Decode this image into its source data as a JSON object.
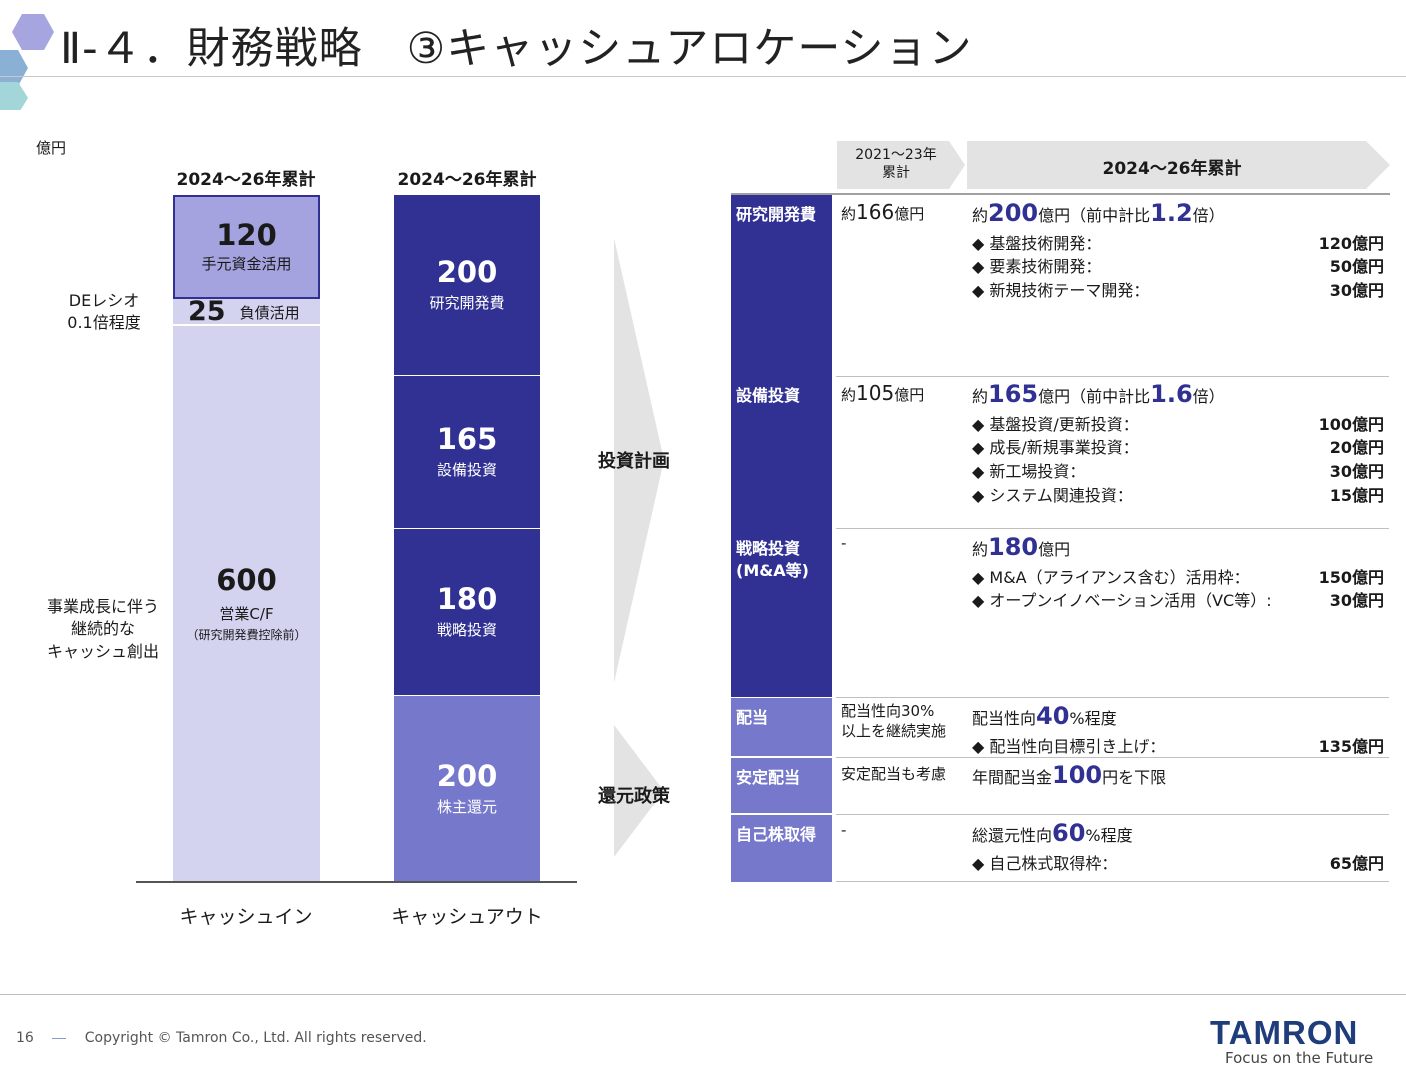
{
  "header": {
    "title": "Ⅱ-４．財務戦略　③キャッシュアロケーション"
  },
  "unit": "億円",
  "cash_in": {
    "heading": "2024～26年累計",
    "axis_label": "キャッシュイン",
    "segments": [
      {
        "value": "120",
        "label": "手元資金活用"
      },
      {
        "value": "25",
        "label": "負債活用"
      },
      {
        "value": "600",
        "label": "営業C/F",
        "sub": "（研究開発費控除前）"
      }
    ],
    "notes": {
      "de_ratio_line1": "DEレシオ",
      "de_ratio_line2": "0.1倍程度",
      "growth_line1": "事業成長に伴う",
      "growth_line2": "継続的な",
      "growth_line3": "キャッシュ創出"
    }
  },
  "cash_out": {
    "heading": "2024～26年累計",
    "axis_label": "キャッシュアウト",
    "segments": [
      {
        "value": "200",
        "label": "研究開発費"
      },
      {
        "value": "165",
        "label": "設備投資"
      },
      {
        "value": "180",
        "label": "戦略投資"
      },
      {
        "value": "200",
        "label": "株主還元"
      }
    ]
  },
  "arrows": {
    "investment": "投資計画",
    "return": "還元政策"
  },
  "table": {
    "col_prev": "2021～23年\n累計",
    "col_cur": "2024～26年累計",
    "rows": [
      {
        "category": "研究開発費",
        "prev_pre": "約",
        "prev_big": "166",
        "prev_post": "億円",
        "cur_pre": "約",
        "cur_big": "200",
        "cur_mid": "億円（前中計比",
        "cur_big2": "1.2",
        "cur_post": "倍）",
        "items": [
          {
            "label": "◆ 基盤技術開発：",
            "value": "120億円"
          },
          {
            "label": "◆ 要素技術開発：",
            "value": "50億円"
          },
          {
            "label": "◆ 新規技術テーマ開発：",
            "value": "30億円"
          }
        ]
      },
      {
        "category": "設備投資",
        "prev_pre": "約",
        "prev_big": "105",
        "prev_post": "億円",
        "cur_pre": "約",
        "cur_big": "165",
        "cur_mid": "億円（前中計比",
        "cur_big2": "1.6",
        "cur_post": "倍）",
        "items": [
          {
            "label": "◆ 基盤投資/更新投資：",
            "value": "100億円"
          },
          {
            "label": "◆ 成長/新規事業投資：",
            "value": "20億円"
          },
          {
            "label": "◆ 新工場投資：",
            "value": "30億円"
          },
          {
            "label": "◆ システム関連投資：",
            "value": "15億円"
          }
        ]
      },
      {
        "category": "戦略投資\n(M&A等)",
        "prev_text": "-",
        "cur_pre": "約",
        "cur_big": "180",
        "cur_post": "億円",
        "items": [
          {
            "label": "◆ M&A（アライアンス含む）活用枠：",
            "value": "150億円"
          },
          {
            "label": "◆ オープンイノベーション活用（VC等）:",
            "value": "30億円"
          }
        ]
      },
      {
        "category": "配当",
        "prev_text": "配当性向30%\n以上を継続実施",
        "cur_pre": "配当性向",
        "cur_big": "40",
        "cur_post": "%程度",
        "items": [
          {
            "label": "◆ 配当性向目標引き上げ：",
            "value": "135億円"
          }
        ]
      },
      {
        "category": "安定配当",
        "prev_text": "安定配当も考慮",
        "cur_pre": "年間配当金",
        "cur_big": "100",
        "cur_post": "円を下限"
      },
      {
        "category": "自己株取得",
        "prev_text": "-",
        "cur_pre": "総還元性向",
        "cur_big": "60",
        "cur_post": "%程度",
        "items": [
          {
            "label": "◆ 自己株式取得枠：",
            "value": "65億円"
          }
        ]
      }
    ]
  },
  "footer": {
    "page": "16",
    "copyright": "Copyright © Tamron Co., Ltd. All rights reserved."
  },
  "brand": {
    "logo": "TAMRON",
    "tagline": "Focus on the Future"
  },
  "colors": {
    "navy": "#303193",
    "mid_blue": "#7678cc",
    "cash_in_top": "#a5a3df",
    "cash_in_light": "#d3d2ef",
    "arrow_gray": "#e3e3e3"
  }
}
